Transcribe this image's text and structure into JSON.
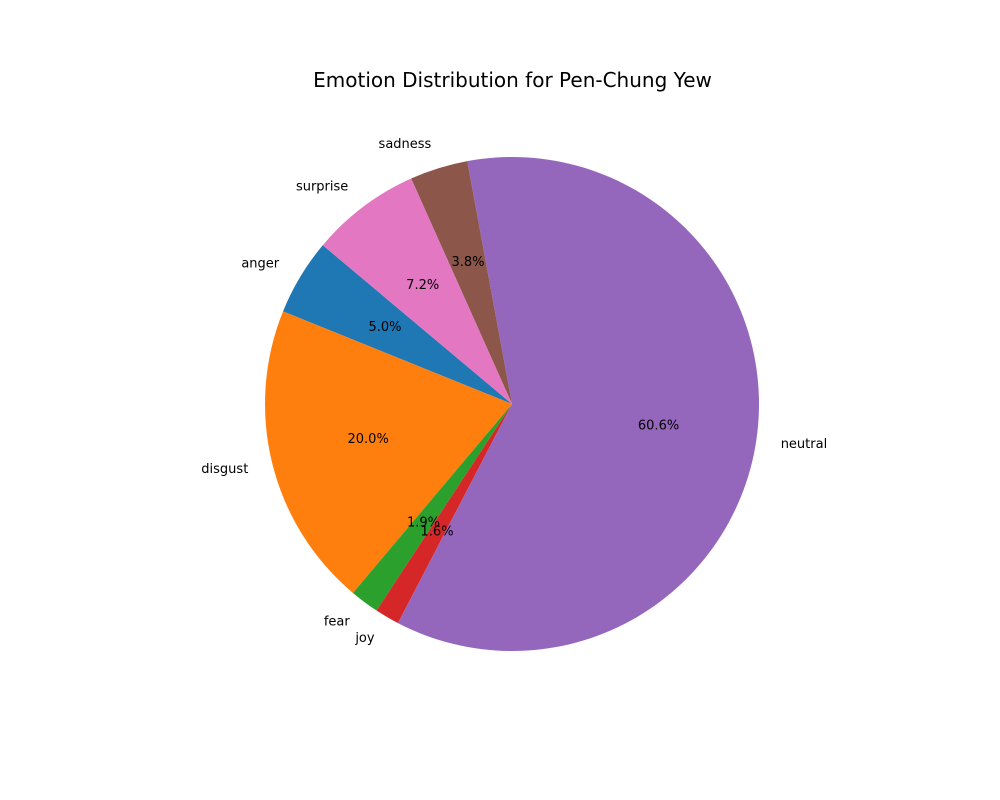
{
  "chart_data": {
    "type": "pie",
    "title": "Emotion Distribution for Pen-Chung Yew",
    "slices": [
      {
        "label": "anger",
        "value": 5.0,
        "pct_label": "5.0%",
        "color": "#1f77b4"
      },
      {
        "label": "disgust",
        "value": 20.0,
        "pct_label": "20.0%",
        "color": "#ff7f0e"
      },
      {
        "label": "fear",
        "value": 1.9,
        "pct_label": "1.9%",
        "color": "#2ca02c"
      },
      {
        "label": "joy",
        "value": 1.6,
        "pct_label": "1.6%",
        "color": "#d62728"
      },
      {
        "label": "neutral",
        "value": 60.6,
        "pct_label": "60.6%",
        "color": "#9467bd"
      },
      {
        "label": "sadness",
        "value": 3.8,
        "pct_label": "3.8%",
        "color": "#8c564b"
      },
      {
        "label": "surprise",
        "value": 7.2,
        "pct_label": "7.2%",
        "color": "#e377c2"
      }
    ],
    "start_angle_deg": 140,
    "direction": "counterclockwise",
    "legend": "none"
  }
}
